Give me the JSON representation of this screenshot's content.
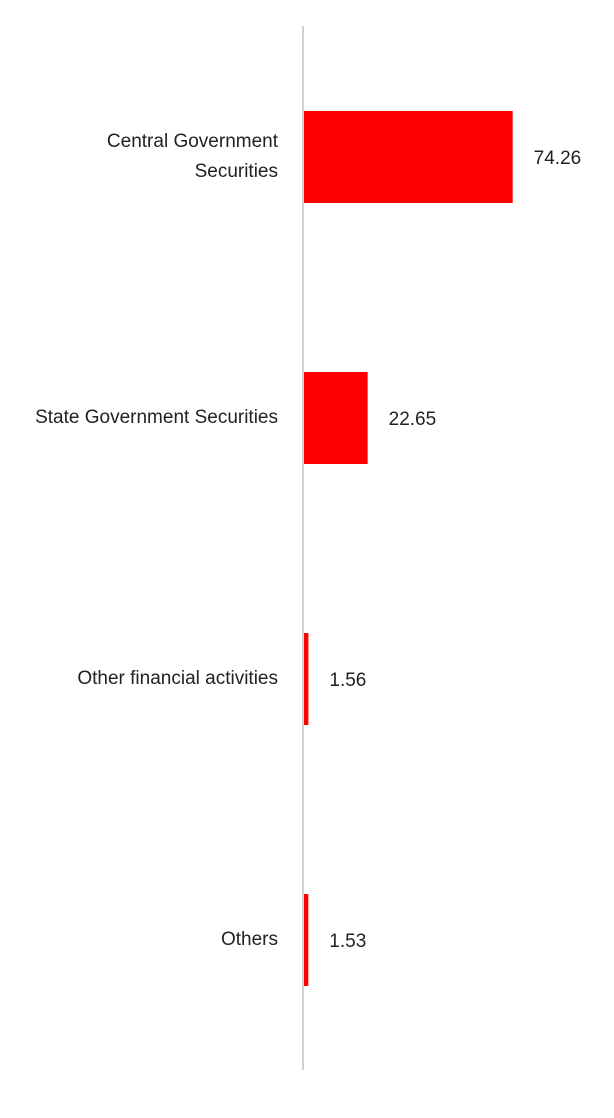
{
  "chart_data": {
    "type": "bar",
    "orientation": "horizontal",
    "categories": [
      [
        "Central Government",
        "Securities"
      ],
      [
        "State Government Securities"
      ],
      [
        "Other financial activities"
      ],
      [
        "Others"
      ]
    ],
    "values": [
      74.26,
      22.65,
      1.56,
      1.53
    ],
    "value_labels": [
      "74.26",
      "22.65",
      "1.56",
      "1.53"
    ],
    "xlim": [
      0,
      100
    ],
    "grid": false,
    "legend": "none",
    "colors": {
      "bar": "#ff0000",
      "axis": "#d0d0d0",
      "text": "#222222"
    }
  }
}
